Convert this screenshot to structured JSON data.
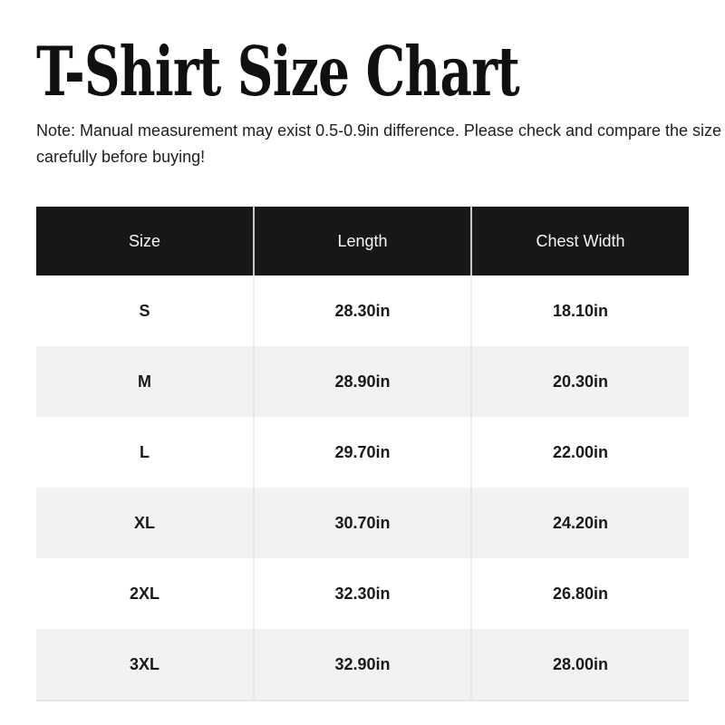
{
  "title": "T-Shirt Size Chart",
  "note": {
    "text": "Note: Manual measurement may exist 0.5-0.9in difference. Please check and compare the size carefully before buying!",
    "lines": [
      "Note: Manual measurement may exist 0.5-0.9in difference. Please check and compare the size",
      "carefully before buying!"
    ]
  },
  "chart_data": {
    "type": "table",
    "title": "T-Shirt Size Chart",
    "columns": [
      "Size",
      "Length",
      "Chest Width"
    ],
    "rows": [
      [
        "S",
        "28.30in",
        "18.10in"
      ],
      [
        "M",
        "28.90in",
        "20.30in"
      ],
      [
        "L",
        "29.70in",
        "22.00in"
      ],
      [
        "XL",
        "30.70in",
        "24.20in"
      ],
      [
        "2XL",
        "32.30in",
        "26.80in"
      ],
      [
        "3XL",
        "32.90in",
        "28.00in"
      ]
    ]
  },
  "colors": {
    "header_bg": "#171717",
    "header_text": "#f7f7f7",
    "row_bg": "#ffffff",
    "row_alt_bg": "#f2f2f2",
    "cell_text": "#1a1a1a",
    "header_separator": "#c9c9c9",
    "body_separator": "#ececec"
  }
}
